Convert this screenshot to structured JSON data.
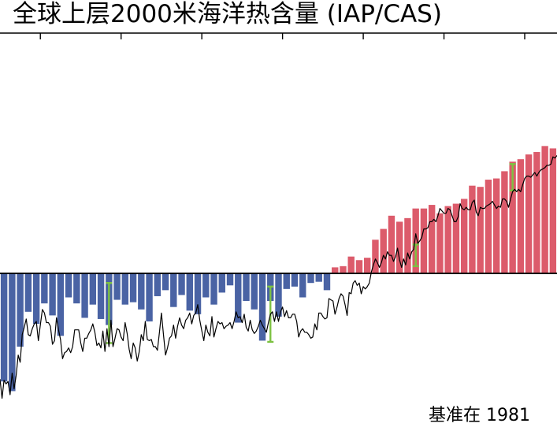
{
  "chart_data": {
    "type": "bar",
    "title": "全球上层2000米海洋热含量 (IAP/CAS)",
    "note": "基准在 1981",
    "baseline": 0,
    "ylim": [
      -12,
      20
    ],
    "x_start": 1955,
    "bar_width": 1,
    "colors": {
      "positive": "#dc5b6b",
      "negative": "#4a63a4",
      "error_bar": "#7dc242",
      "line": "#000000",
      "axis": "#000000"
    },
    "values": [
      -9.0,
      -9.8,
      -6.1,
      -3.2,
      -4.2,
      -2.5,
      -3.5,
      -5.2,
      -2.0,
      -2.5,
      -3.7,
      -2.6,
      -3.8,
      -4.3,
      -2.2,
      -2.6,
      -2.4,
      -3.0,
      -4.0,
      -1.9,
      -1.4,
      -2.8,
      -1.8,
      -3.1,
      -3.4,
      -2.0,
      -2.6,
      -1.6,
      -1.0,
      -4.1,
      -2.3,
      -3.0,
      -5.6,
      -2.3,
      -3.6,
      -1.3,
      -1.1,
      -2.0,
      -0.8,
      -0.7,
      -1.4,
      0.5,
      0.6,
      1.4,
      1.1,
      1.3,
      2.8,
      3.7,
      4.8,
      4.3,
      4.6,
      5.4,
      5.4,
      5.7,
      5.0,
      5.6,
      5.8,
      6.2,
      7.3,
      7.2,
      7.8,
      7.9,
      8.5,
      9.3,
      9.5,
      9.9,
      10.1,
      10.6,
      10.4
    ],
    "error_bars": [
      {
        "x": 1968,
        "low": -5.8,
        "high": -0.8
      },
      {
        "x": 1988,
        "low": -5.7,
        "high": -1.1
      },
      {
        "x": 2006,
        "low": 0.6,
        "high": 2.4
      },
      {
        "x": 2018,
        "low": 6.9,
        "high": 9.1
      }
    ],
    "monthly_series": {
      "x_start": 1955.0,
      "step": 0.25,
      "values": [
        -8.8,
        -10.4,
        -8.9,
        -9.2,
        -9.0,
        -10.1,
        -8.3,
        -9.6,
        -8.5,
        -6.8,
        -7.4,
        -5.1,
        -4.5,
        -3.8,
        -5.1,
        -5.2,
        -4.6,
        -4.2,
        -4.0,
        -5.6,
        -4.3,
        -3.0,
        -3.3,
        -4.1,
        -4.1,
        -4.4,
        -5.9,
        -5.6,
        -3.7,
        -4.7,
        -5.5,
        -7.1,
        -6.6,
        -6.5,
        -6.2,
        -6.6,
        -6.1,
        -4.7,
        -4.7,
        -4.7,
        -5.8,
        -6.5,
        -5.4,
        -5.4,
        -5.0,
        -4.7,
        -4.2,
        -4.9,
        -6.0,
        -5.8,
        -6.2,
        -4.8,
        -6.5,
        -4.6,
        -6.1,
        -3.9,
        -6.1,
        -5.4,
        -4.6,
        -4.7,
        -5.3,
        -5.6,
        -4.1,
        -5.0,
        -6.3,
        -7.1,
        -5.8,
        -6.2,
        -7.3,
        -6.5,
        -5.1,
        -5.6,
        -4.0,
        -5.5,
        -5.6,
        -5.5,
        -6.1,
        -6.1,
        -6.4,
        -4.9,
        -3.3,
        -5.1,
        -6.8,
        -6.2,
        -5.4,
        -5.2,
        -4.3,
        -5.4,
        -4.4,
        -3.7,
        -4.3,
        -4.6,
        -3.9,
        -3.7,
        -3.3,
        -4.2,
        -3.5,
        -3.3,
        -2.6,
        -3.9,
        -4.8,
        -5.6,
        -4.3,
        -4.9,
        -5.2,
        -3.6,
        -5.3,
        -4.6,
        -4.0,
        -4.2,
        -4.1,
        -4.6,
        -4.4,
        -4.3,
        -4.1,
        -4.6,
        -4.0,
        -3.2,
        -3.7,
        -3.6,
        -4.1,
        -3.4,
        -4.5,
        -4.8,
        -3.9,
        -4.7,
        -5.0,
        -4.8,
        -4.4,
        -3.9,
        -4.3,
        -4.6,
        -4.9,
        -4.1,
        -3.4,
        -3.2,
        -4.0,
        -3.2,
        -4.0,
        -3.2,
        -2.8,
        -3.6,
        -3.1,
        -3.7,
        -3.7,
        -3.4,
        -3.4,
        -4.0,
        -5.3,
        -4.8,
        -4.6,
        -4.9,
        -4.9,
        -5.1,
        -5.4,
        -5.3,
        -4.2,
        -4.7,
        -3.3,
        -3.3,
        -3.6,
        -3.8,
        -3.7,
        -2.1,
        -2.2,
        -2.3,
        -3.4,
        -2.8,
        -2.1,
        -1.7,
        -1.9,
        -2.6,
        -3.5,
        -1.6,
        -1.7,
        -0.8,
        -0.6,
        -1.0,
        -0.8,
        -1.7,
        -1.1,
        -1.3,
        -1.1,
        -0.8,
        0.1,
        0.7,
        1.2,
        0.9,
        0.5,
        0.9,
        1.5,
        1.2,
        1.8,
        1.5,
        1.5,
        1.0,
        1.4,
        2.1,
        1.1,
        0.5,
        1.2,
        0.7,
        1.7,
        1.2,
        1.8,
        2.0,
        3.3,
        2.5,
        2.7,
        3.0,
        3.7,
        3.7,
        3.8,
        4.3,
        4.3,
        4.5,
        4.3,
        4.8,
        5.4,
        5.2,
        5.0,
        5.0,
        5.4,
        5.3,
        4.8,
        4.3,
        4.3,
        4.7,
        5.8,
        5.4,
        5.3,
        5.5,
        5.3,
        5.3,
        5.9,
        6.1,
        5.1,
        4.8,
        5.5,
        5.4,
        5.4,
        5.6,
        5.7,
        5.8,
        6.0,
        5.7,
        5.4,
        5.6,
        5.5,
        6.2,
        6.2,
        6.0,
        5.5,
        6.2,
        6.8,
        7.0,
        6.8,
        7.0,
        6.8,
        7.4,
        7.9,
        8.1,
        8.1,
        8.0,
        8.2,
        8.4,
        8.1,
        8.4,
        8.6,
        8.7,
        8.8,
        9.0,
        9.0,
        9.1,
        9.7,
        9.6,
        9.8,
        9.8,
        10.4,
        10.0,
        10.2,
        10.2,
        10.3,
        10.2,
        10.8,
        10.8,
        10.6,
        10.8,
        10.5,
        10.2,
        10.5,
        10.4
      ]
    }
  }
}
